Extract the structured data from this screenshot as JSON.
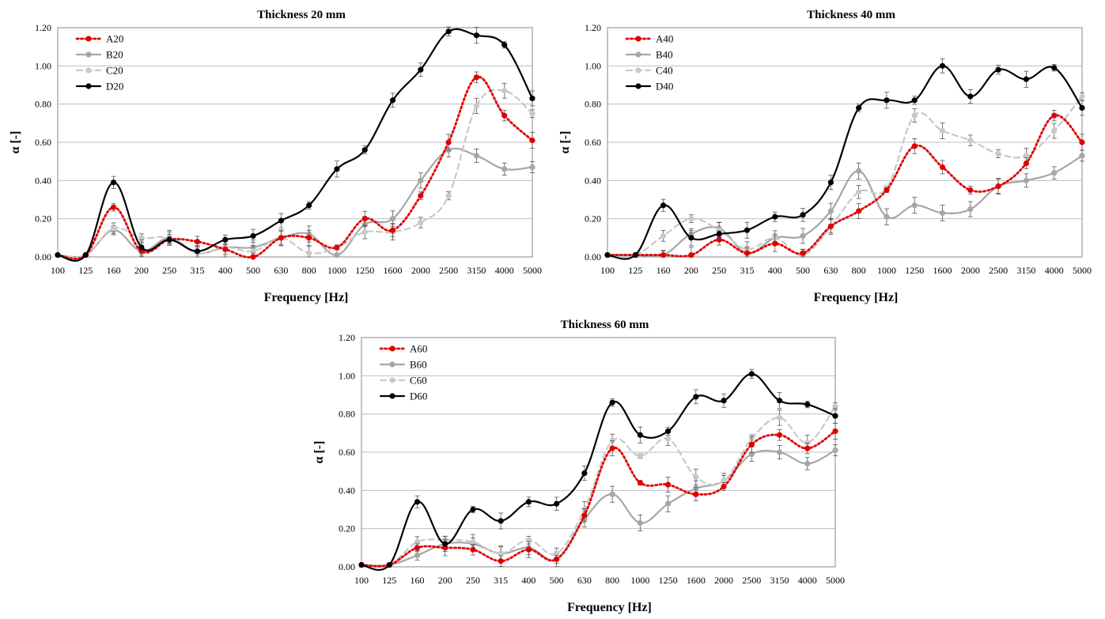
{
  "chart_data": [
    {
      "type": "line",
      "title": "Thickness 20 mm",
      "xlabel": "Frequency [Hz]",
      "ylabel": "α [-]",
      "categories": [
        "100",
        "125",
        "160",
        "200",
        "250",
        "315",
        "400",
        "500",
        "630",
        "800",
        "1000",
        "1250",
        "1600",
        "2000",
        "2500",
        "3150",
        "4000",
        "5000"
      ],
      "ylim": [
        0,
        1.2
      ],
      "yticks": [
        "0.00",
        "0.20",
        "0.40",
        "0.60",
        "0.80",
        "1.00",
        "1.20"
      ],
      "grid": true,
      "legend_position": "top-left",
      "series": [
        {
          "name": "A20",
          "color": "#e00000",
          "style": "dotted",
          "values": [
            0.01,
            0.01,
            0.26,
            0.03,
            0.09,
            0.08,
            0.04,
            0.0,
            0.1,
            0.1,
            0.05,
            0.2,
            0.14,
            0.32,
            0.6,
            0.94,
            0.74,
            0.61
          ]
        },
        {
          "name": "B20",
          "color": "#a6a6a6",
          "style": "solid",
          "values": [
            0.01,
            0.01,
            0.14,
            0.03,
            0.1,
            0.02,
            0.05,
            0.05,
            0.1,
            0.12,
            0.01,
            0.17,
            0.2,
            0.4,
            0.56,
            0.53,
            0.46,
            0.47
          ]
        },
        {
          "name": "C20",
          "color": "#c8c8c8",
          "style": "dashed",
          "values": [
            0.01,
            0.01,
            0.15,
            0.1,
            0.1,
            0.02,
            0.05,
            0.03,
            0.1,
            0.02,
            0.05,
            0.13,
            0.13,
            0.18,
            0.32,
            0.79,
            0.87,
            0.75
          ]
        },
        {
          "name": "D20",
          "color": "#000000",
          "style": "solid",
          "values": [
            0.01,
            0.01,
            0.39,
            0.05,
            0.09,
            0.03,
            0.09,
            0.11,
            0.19,
            0.27,
            0.46,
            0.56,
            0.82,
            0.98,
            1.18,
            1.16,
            1.11,
            0.83
          ]
        }
      ]
    },
    {
      "type": "line",
      "title": "Thickness 40 mm",
      "xlabel": "Frequency [Hz]",
      "ylabel": "α [-]",
      "categories": [
        "100",
        "125",
        "160",
        "200",
        "250",
        "315",
        "400",
        "500",
        "630",
        "800",
        "1000",
        "1250",
        "1600",
        "2000",
        "2500",
        "3150",
        "4000",
        "5000"
      ],
      "ylim": [
        0,
        1.2
      ],
      "yticks": [
        "0.00",
        "0.20",
        "0.40",
        "0.60",
        "0.80",
        "1.00",
        "1.20"
      ],
      "grid": true,
      "legend_position": "top-left",
      "series": [
        {
          "name": "A40",
          "color": "#e00000",
          "style": "dotted",
          "values": [
            0.01,
            0.01,
            0.01,
            0.01,
            0.09,
            0.02,
            0.07,
            0.02,
            0.16,
            0.24,
            0.35,
            0.58,
            0.47,
            0.35,
            0.37,
            0.49,
            0.74,
            0.6
          ]
        },
        {
          "name": "B40",
          "color": "#a6a6a6",
          "style": "solid",
          "values": [
            0.01,
            0.01,
            0.01,
            0.12,
            0.15,
            0.02,
            0.1,
            0.11,
            0.24,
            0.45,
            0.21,
            0.27,
            0.23,
            0.25,
            0.37,
            0.4,
            0.44,
            0.53
          ]
        },
        {
          "name": "C40",
          "color": "#c8c8c8",
          "style": "dashed",
          "values": [
            0.01,
            0.01,
            0.11,
            0.2,
            0.14,
            0.04,
            0.1,
            0.01,
            0.16,
            0.34,
            0.36,
            0.74,
            0.66,
            0.61,
            0.54,
            0.53,
            0.66,
            0.84
          ]
        },
        {
          "name": "D40",
          "color": "#000000",
          "style": "solid",
          "values": [
            0.01,
            0.01,
            0.27,
            0.1,
            0.12,
            0.14,
            0.21,
            0.22,
            0.39,
            0.78,
            0.82,
            0.82,
            1.0,
            0.84,
            0.98,
            0.93,
            0.99,
            0.78
          ]
        }
      ]
    },
    {
      "type": "line",
      "title": "Thickness 60 mm",
      "xlabel": "Frequency [Hz]",
      "ylabel": "α [-]",
      "categories": [
        "100",
        "125",
        "160",
        "200",
        "250",
        "315",
        "400",
        "500",
        "630",
        "800",
        "1000",
        "1250",
        "1600",
        "2000",
        "2500",
        "3150",
        "4000",
        "5000"
      ],
      "ylim": [
        0,
        1.2
      ],
      "yticks": [
        "0.00",
        "0.20",
        "0.40",
        "0.60",
        "0.80",
        "1.00",
        "1.20"
      ],
      "grid": true,
      "legend_position": "top-left",
      "series": [
        {
          "name": "A60",
          "color": "#e00000",
          "style": "dotted",
          "values": [
            0.01,
            0.01,
            0.1,
            0.1,
            0.09,
            0.03,
            0.09,
            0.04,
            0.27,
            0.62,
            0.44,
            0.43,
            0.38,
            0.42,
            0.64,
            0.69,
            0.62,
            0.71
          ]
        },
        {
          "name": "B60",
          "color": "#a6a6a6",
          "style": "solid",
          "values": [
            0.01,
            0.01,
            0.06,
            0.12,
            0.12,
            0.07,
            0.1,
            0.04,
            0.25,
            0.38,
            0.23,
            0.33,
            0.41,
            0.45,
            0.59,
            0.6,
            0.54,
            0.61
          ]
        },
        {
          "name": "C60",
          "color": "#c8c8c8",
          "style": "dashed",
          "values": [
            0.01,
            0.01,
            0.13,
            0.14,
            0.13,
            0.07,
            0.14,
            0.07,
            0.3,
            0.66,
            0.58,
            0.67,
            0.47,
            0.45,
            0.67,
            0.78,
            0.65,
            0.84
          ]
        },
        {
          "name": "D60",
          "color": "#000000",
          "style": "solid",
          "values": [
            0.01,
            0.01,
            0.34,
            0.12,
            0.3,
            0.24,
            0.34,
            0.33,
            0.49,
            0.86,
            0.69,
            0.71,
            0.89,
            0.87,
            1.01,
            0.87,
            0.85,
            0.79
          ]
        }
      ]
    }
  ]
}
